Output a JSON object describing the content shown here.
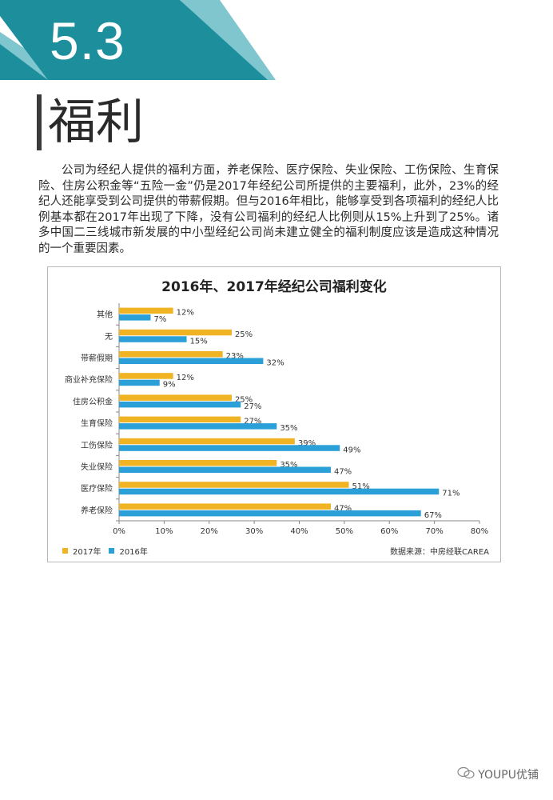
{
  "section": {
    "number": "5.3",
    "title": "福利"
  },
  "body_text": "公司为经纪人提供的福利方面，养老保险、医疗保险、失业保险、工伤保险、生育保险、住房公积金等“五险一金”仍是2017年经纪公司所提供的主要福利，此外，23%的经纪人还能享受到公司提供的带薪假期。但与2016年相比，能够享受到各项福利的经纪人比例基本都在2017年出现了下降，没有公司福利的经纪人比例则从15%上升到了25%。诸多中国二三线城市新发展的中小型经纪公司尚未建立健全的福利制度应该是造成这种情况的一个重要因素。",
  "colors": {
    "teal_dark": "#1d8f9c",
    "teal_light": "#7fc6cf",
    "series_2017": "#f0b323",
    "series_2016": "#2a9fd8"
  },
  "chart_data": {
    "type": "bar",
    "orientation": "horizontal",
    "title": "2016年、2017年经纪公司福利变化",
    "categories": [
      "其他",
      "无",
      "带薪假期",
      "商业补充保险",
      "住房公积金",
      "生育保险",
      "工伤保险",
      "失业保险",
      "医疗保险",
      "养老保险"
    ],
    "series": [
      {
        "name": "2017年",
        "values": [
          12,
          25,
          23,
          12,
          25,
          27,
          39,
          35,
          51,
          47
        ]
      },
      {
        "name": "2016年",
        "values": [
          7,
          15,
          32,
          9,
          27,
          35,
          49,
          47,
          71,
          67
        ]
      }
    ],
    "xlim": [
      0,
      80
    ],
    "xticks": [
      "0%",
      "10%",
      "20%",
      "30%",
      "40%",
      "50%",
      "60%",
      "70%",
      "80%"
    ],
    "value_suffix": "%",
    "grid": false,
    "legend": "bottom-left",
    "source": "数据来源：中房经联CAREA"
  },
  "watermark": {
    "text": "YOUPU优铺",
    "icon": "wechat-icon"
  }
}
